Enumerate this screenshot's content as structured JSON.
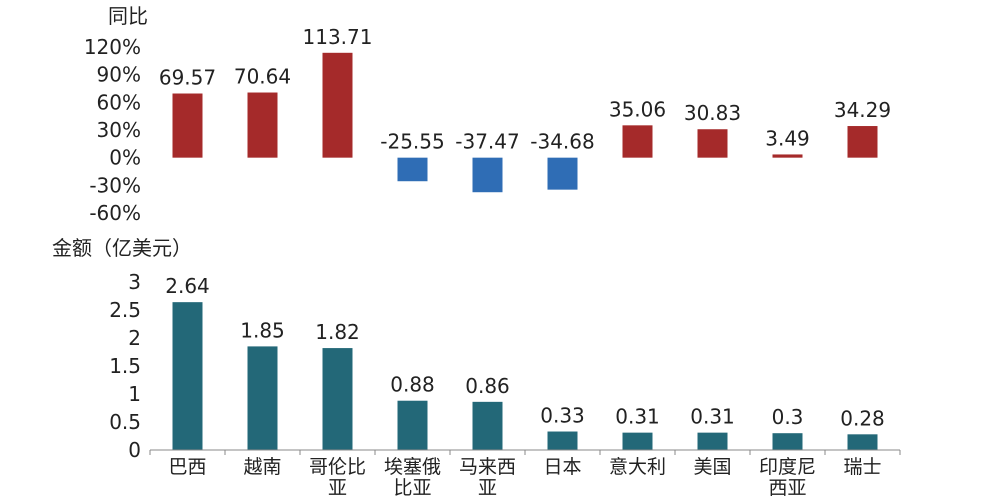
{
  "colors": {
    "positive": "#A52A2A",
    "negative": "#2F6DB5",
    "amount": "#236878",
    "axis": "#888888"
  },
  "chart_data": [
    {
      "type": "bar",
      "ylabel": "同比",
      "categories": [
        "巴西",
        "越南",
        "哥伦比亚",
        "埃塞俄比亚",
        "马来西亚",
        "日本",
        "意大利",
        "美国",
        "印度尼西亚",
        "瑞士"
      ],
      "values": [
        69.57,
        70.64,
        113.71,
        -25.55,
        -37.47,
        -34.68,
        35.06,
        30.83,
        3.49,
        34.29
      ],
      "value_labels": [
        "69.57",
        "70.64",
        "113.71",
        "-25.55",
        "-37.47",
        "-34.68",
        "35.06",
        "30.83",
        "3.49",
        "34.29"
      ],
      "yticks": [
        "120%",
        "90%",
        "60%",
        "30%",
        "0%",
        "-30%",
        "-60%"
      ],
      "ytick_values": [
        120,
        90,
        60,
        30,
        0,
        -30,
        -60
      ],
      "ylim": [
        -60,
        120
      ],
      "grid": false
    },
    {
      "type": "bar",
      "ylabel": "金额（亿美元）",
      "categories": [
        "巴西",
        "越南",
        "哥伦比亚",
        "埃塞俄比亚",
        "马来西亚",
        "日本",
        "意大利",
        "美国",
        "印度尼西亚",
        "瑞士"
      ],
      "category_lines": [
        [
          "巴西"
        ],
        [
          "越南"
        ],
        [
          "哥伦比",
          "亚"
        ],
        [
          "埃塞俄",
          "比亚"
        ],
        [
          "马来西",
          "亚"
        ],
        [
          "日本"
        ],
        [
          "意大利"
        ],
        [
          "美国"
        ],
        [
          "印度尼",
          "西亚"
        ],
        [
          "瑞士"
        ]
      ],
      "values": [
        2.64,
        1.85,
        1.82,
        0.88,
        0.86,
        0.33,
        0.31,
        0.31,
        0.3,
        0.28
      ],
      "value_labels": [
        "2.64",
        "1.85",
        "1.82",
        "0.88",
        "0.86",
        "0.33",
        "0.31",
        "0.31",
        "0.3",
        "0.28"
      ],
      "yticks": [
        "3",
        "2.5",
        "2",
        "1.5",
        "1",
        "0.5",
        "0"
      ],
      "ytick_values": [
        3,
        2.5,
        2,
        1.5,
        1,
        0.5,
        0
      ],
      "ylim": [
        0,
        3
      ],
      "grid": false
    }
  ]
}
